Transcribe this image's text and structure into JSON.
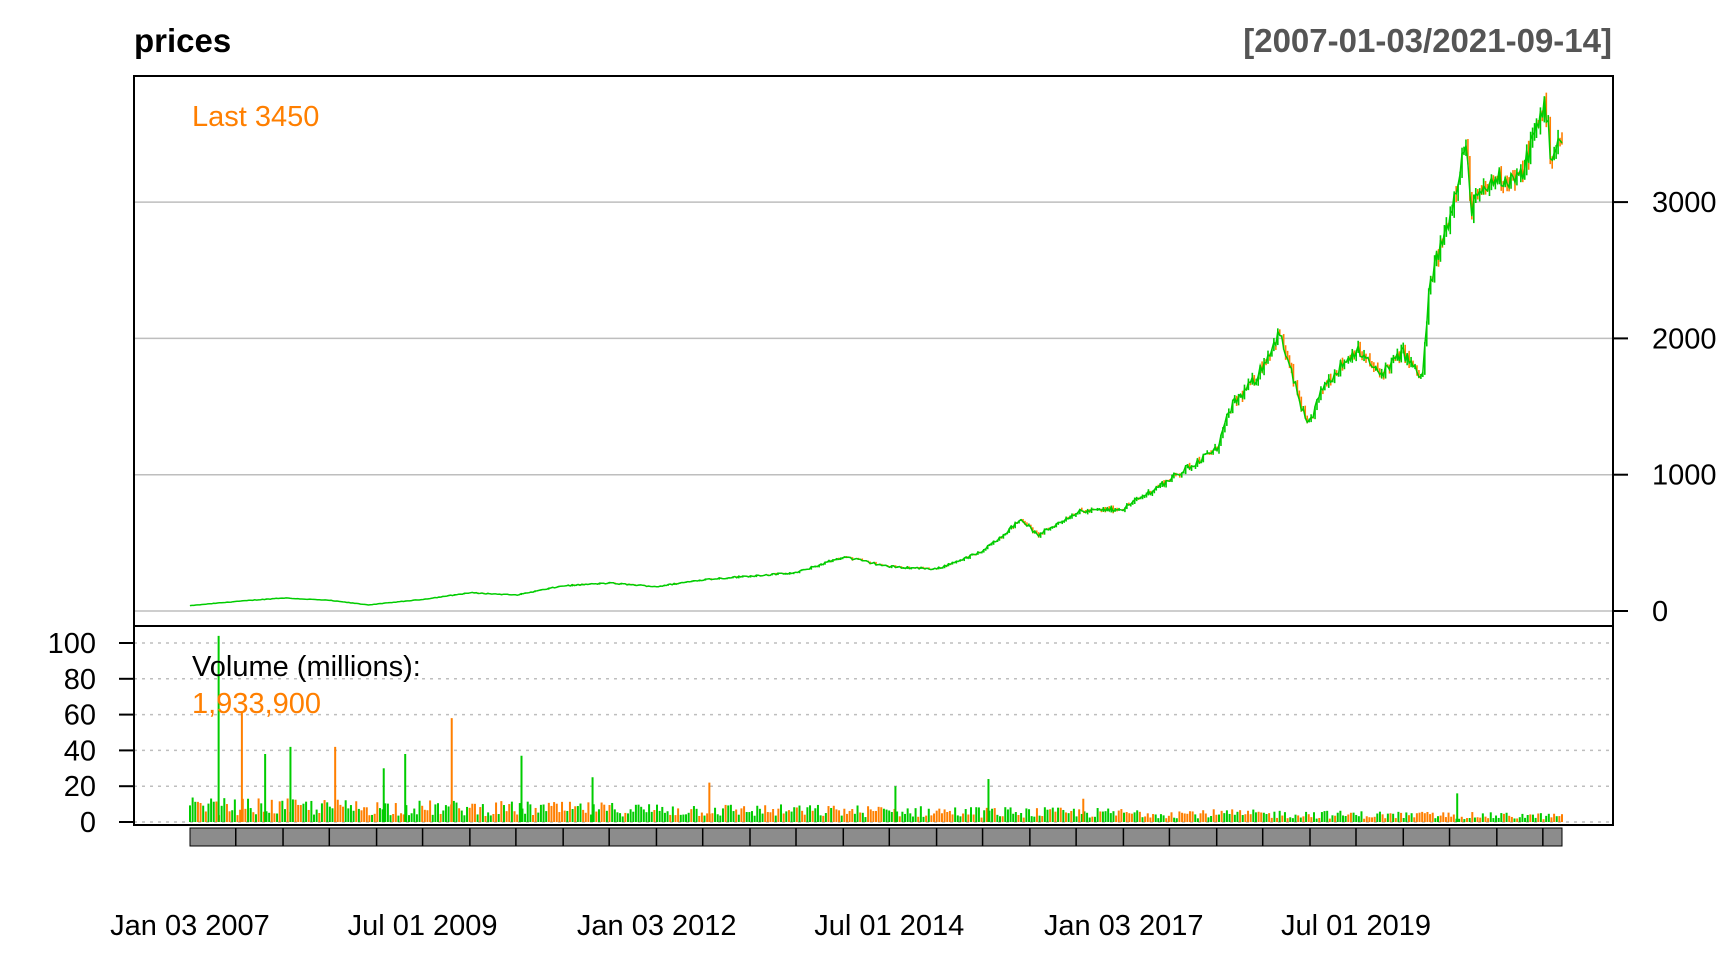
{
  "chart_data": [
    {
      "type": "line",
      "title": "prices",
      "date_range": "[2007-01-03/2021-09-14]",
      "legend_label": "Last 3450",
      "y_ticks": [
        0,
        1000,
        2000,
        3000
      ],
      "ylim": [
        0,
        3900
      ],
      "y_axis_side": "right",
      "grid": true,
      "x_tick_labels": [
        "Jan 03 2007",
        "Jul 01 2009",
        "Jan 03 2012",
        "Jul 01 2014",
        "Jan 03 2017",
        "Jul 01 2019"
      ],
      "x_tick_dates": [
        "2007-01-03",
        "2009-07-01",
        "2012-01-03",
        "2014-07-01",
        "2017-01-03",
        "2019-07-01"
      ],
      "xlim": [
        "2007-01-03",
        "2021-09-14"
      ],
      "series": [
        {
          "values_x": [
            "2007-01-03",
            "2007-07-01",
            "2008-01-02",
            "2008-07-01",
            "2008-12-01",
            "2009-07-01",
            "2010-01-04",
            "2010-07-01",
            "2011-01-03",
            "2011-07-01",
            "2012-01-03",
            "2012-07-02",
            "2013-01-02",
            "2013-07-01",
            "2014-01-02",
            "2014-07-01",
            "2015-01-02",
            "2015-07-01",
            "2015-12-01",
            "2016-02-01",
            "2016-07-01",
            "2017-01-03",
            "2017-07-03",
            "2018-01-02",
            "2018-03-01",
            "2018-06-01",
            "2018-09-04",
            "2018-12-24",
            "2019-03-01",
            "2019-07-01",
            "2019-10-01",
            "2020-01-02",
            "2020-03-16",
            "2020-04-15",
            "2020-07-01",
            "2020-09-02",
            "2020-09-21",
            "2021-01-04",
            "2021-04-01",
            "2021-07-08",
            "2021-08-02",
            "2021-09-14"
          ],
          "values_y": [
            39,
            70,
            96,
            78,
            45,
            85,
            134,
            117,
            185,
            205,
            179,
            230,
            257,
            280,
            398,
            325,
            308,
            437,
            675,
            552,
            725,
            753,
            968,
            1189,
            1500,
            1700,
            2039,
            1343,
            1670,
            1922,
            1735,
            1898,
            1690,
            2400,
            2900,
            3450,
            2960,
            3186,
            3161,
            3731,
            3350,
            3450
          ]
        }
      ],
      "colors": {
        "up": "#00cc00",
        "down": "#ff7f00",
        "legend": "#ff7f00",
        "grid": "#bebebe"
      }
    },
    {
      "type": "bar",
      "title": "Volume (millions):",
      "last_value": "1,933,900",
      "y_ticks": [
        0,
        20,
        40,
        60,
        80,
        100
      ],
      "ylim": [
        0,
        110
      ],
      "y_axis_side": "left",
      "grid": true,
      "notable_spikes": [
        {
          "date": "2007-04-25",
          "value": 104
        },
        {
          "date": "2007-07-25",
          "value": 61
        },
        {
          "date": "2007-10-24",
          "value": 38
        },
        {
          "date": "2008-01-31",
          "value": 42
        },
        {
          "date": "2008-07-24",
          "value": 42
        },
        {
          "date": "2009-01-30",
          "value": 30
        },
        {
          "date": "2009-04-24",
          "value": 38
        },
        {
          "date": "2009-10-23",
          "value": 58
        },
        {
          "date": "2010-07-23",
          "value": 37
        },
        {
          "date": "2011-04-27",
          "value": 25
        },
        {
          "date": "2012-07-27",
          "value": 22
        },
        {
          "date": "2014-07-25",
          "value": 20
        },
        {
          "date": "2015-07-24",
          "value": 24
        },
        {
          "date": "2016-07-29",
          "value": 13
        },
        {
          "date": "2020-07-31",
          "value": 16
        }
      ],
      "colors": {
        "up": "#00cc00",
        "down": "#ff7f00",
        "last_value": "#ff7f00"
      }
    }
  ]
}
